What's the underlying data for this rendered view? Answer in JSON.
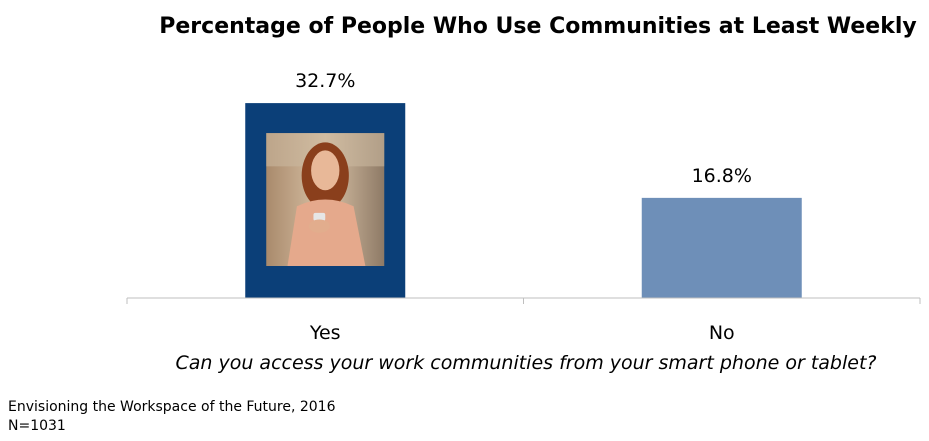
{
  "chart_data": {
    "type": "bar",
    "title": "Percentage of People Who Use Communities at Least Weekly",
    "categories": [
      "Yes",
      "No"
    ],
    "values": [
      32.7,
      16.8
    ],
    "value_labels": [
      "32.7%",
      "16.8%"
    ],
    "xlabel": "Can you access your work communities from your smart phone or tablet?",
    "ylabel": "",
    "ylim": [
      0,
      35
    ],
    "grid": false,
    "bar_colors": [
      "#0b3f78",
      "#6e8fb8"
    ]
  },
  "footer": {
    "source": "Envisioning the Workspace of the Future, 2016",
    "sample": "N=1031"
  }
}
